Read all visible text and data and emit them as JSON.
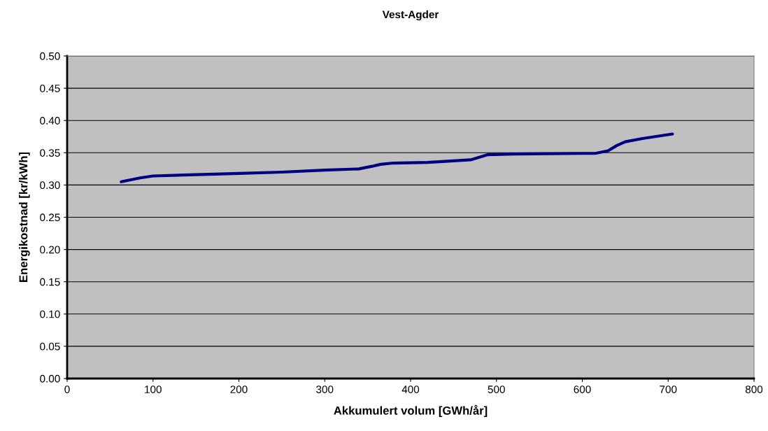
{
  "chart_data": {
    "type": "line",
    "title": "Vest-Agder",
    "xlabel": "Akkumulert volum [GWh/år]",
    "ylabel": "Energikostnad [kr/kWh]",
    "x": [
      63,
      85,
      100,
      150,
      200,
      250,
      300,
      340,
      355,
      365,
      380,
      420,
      470,
      480,
      490,
      520,
      600,
      615,
      630,
      640,
      650,
      670,
      705
    ],
    "series": [
      {
        "color": "#000080",
        "values": [
          0.305,
          0.311,
          0.314,
          0.316,
          0.318,
          0.32,
          0.323,
          0.325,
          0.329,
          0.332,
          0.334,
          0.335,
          0.339,
          0.343,
          0.347,
          0.348,
          0.349,
          0.349,
          0.353,
          0.361,
          0.367,
          0.372,
          0.379
        ]
      }
    ],
    "xlim": [
      0,
      800
    ],
    "xticks": [
      0,
      100,
      200,
      300,
      400,
      500,
      600,
      700,
      800
    ],
    "ylim": [
      0,
      0.5
    ],
    "yticks": [
      {
        "value": 0,
        "label": "0.00"
      },
      {
        "value": 0.05,
        "label": "0.05"
      },
      {
        "value": 0.1,
        "label": "0.10"
      },
      {
        "value": 0.15,
        "label": "0.15"
      },
      {
        "value": 0.2,
        "label": "0.20"
      },
      {
        "value": 0.25,
        "label": "0.25"
      },
      {
        "value": 0.3,
        "label": "0.30"
      },
      {
        "value": 0.35,
        "label": "0.35"
      },
      {
        "value": 0.4,
        "label": "0.40"
      },
      {
        "value": 0.45,
        "label": "0.45"
      },
      {
        "value": 0.5,
        "label": "0.50"
      }
    ],
    "grid": "y",
    "marker": "none",
    "line_style": "solid"
  }
}
